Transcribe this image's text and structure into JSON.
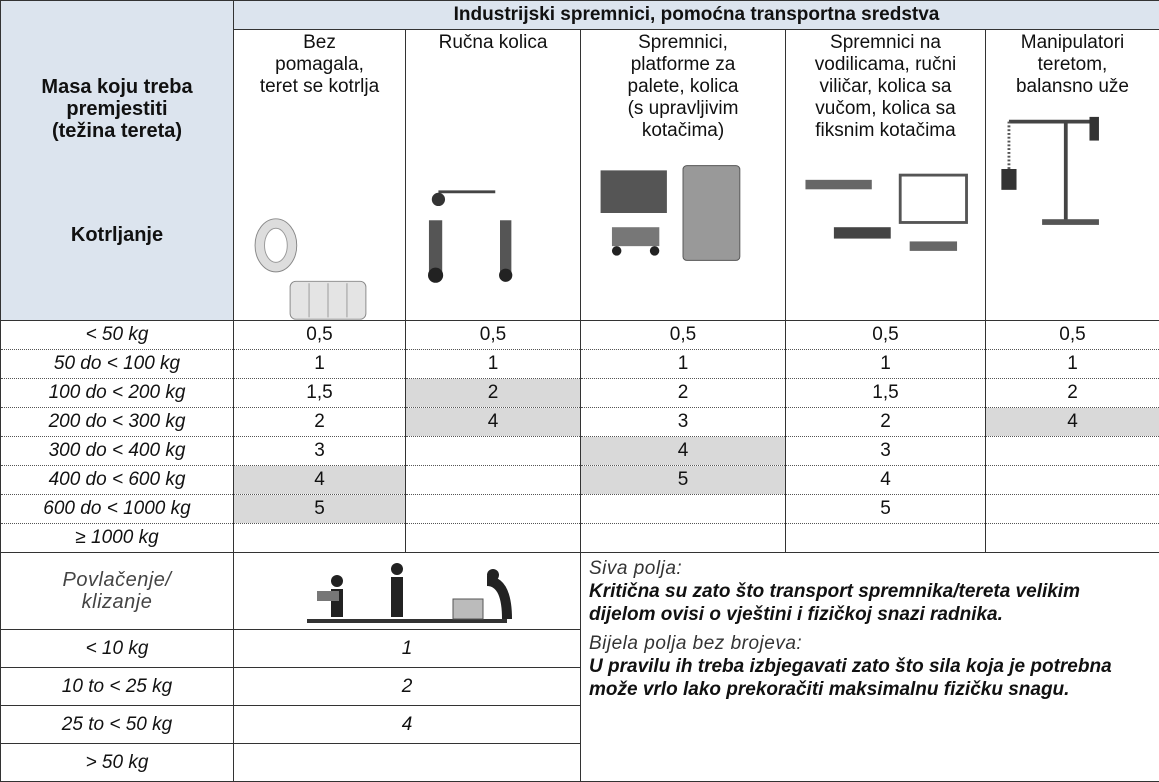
{
  "header": {
    "row_label": "Masa koju treba\npremjestiti\n(težina tereta)",
    "row_sublabel": "Kotrljanje",
    "group_title": "Industrijski spremnici, pomoćna transportna sredstva",
    "columns": [
      "Bez\npomagala,\nteret se kotrlja",
      "Ručna kolica",
      "Spremnici,\nplatforme za\npalete, kolica\n(s upravljivim\nkotačima)",
      "Spremnici na\nvodilicama, ručni\nviličar, kolica sa\nvučom, kolica sa\nfiksnim kotačima",
      "Manipulatori\nteretom,\nbalansno uže"
    ]
  },
  "rolling": {
    "rows": [
      {
        "label": "< 50 kg",
        "values": [
          "0,5",
          "0,5",
          "0,5",
          "0,5",
          "0,5"
        ],
        "shaded": []
      },
      {
        "label": "50 do < 100 kg",
        "values": [
          "1",
          "1",
          "1",
          "1",
          "1"
        ],
        "shaded": []
      },
      {
        "label": "100 do < 200 kg",
        "values": [
          "1,5",
          "2",
          "2",
          "1,5",
          "2"
        ],
        "shaded": [
          1
        ]
      },
      {
        "label": "200 do < 300 kg",
        "values": [
          "2",
          "4",
          "3",
          "2",
          "4"
        ],
        "shaded": [
          1,
          4
        ]
      },
      {
        "label": "300 do < 400 kg",
        "values": [
          "3",
          null,
          "4",
          "3",
          null
        ],
        "shaded": [
          2
        ]
      },
      {
        "label": "400 do < 600 kg",
        "values": [
          "4",
          null,
          "5",
          "4",
          null
        ],
        "shaded": [
          0,
          2
        ]
      },
      {
        "label": "600 do < 1000 kg",
        "values": [
          "5",
          null,
          null,
          "5",
          null
        ],
        "shaded": [
          0
        ]
      },
      {
        "label": "≥ 1000 kg",
        "values": [
          null,
          null,
          null,
          null,
          null
        ],
        "shaded": []
      }
    ]
  },
  "pulling": {
    "title": "Povlačenje/\nklizanje",
    "rows": [
      {
        "label": "< 10 kg",
        "value": "1"
      },
      {
        "label": "10 to < 25 kg",
        "value": "2"
      },
      {
        "label": "25 to < 50 kg",
        "value": "4"
      },
      {
        "label": "> 50 kg",
        "value": null
      }
    ]
  },
  "notes": [
    {
      "heading": "Siva polja:",
      "text": "Kritična su zato što transport  spremnika/tereta velikim dijelom ovisi  o vještini i fizičkoj snazi radnika."
    },
    {
      "heading": "Bijela polja bez brojeva:",
      "text": "U pravilu ih treba izbjegavati zato što sila koja je potrebna može vrlo lako prekoračiti maksimalnu fizičku snagu."
    }
  ]
}
